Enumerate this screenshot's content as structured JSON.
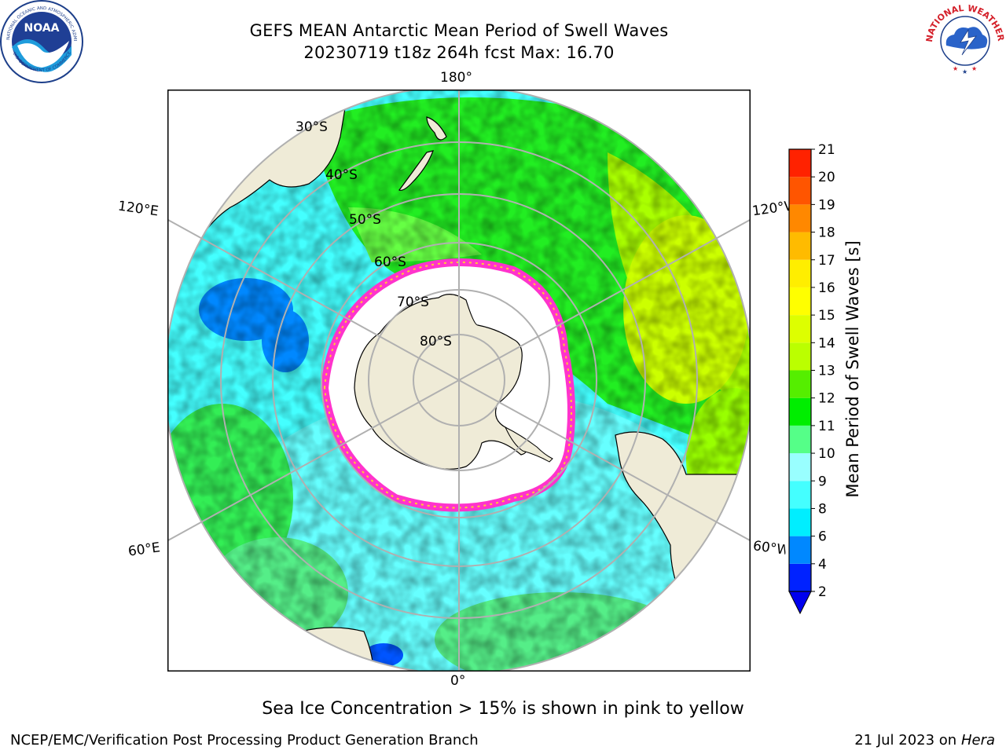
{
  "header": {
    "title_line1": "GEFS MEAN Antarctic Mean Period of Swell Waves",
    "title_line2": "20230719 t18z 264h fcst   Max: 16.70"
  },
  "logos": {
    "left": "NOAA",
    "right": "NATIONAL WEATHER SERVICE"
  },
  "map": {
    "projection": "south-polar-stereographic",
    "longitude_labels": {
      "top": "180°",
      "bottom": "0°",
      "left_upper": "120°E",
      "left_lower": "60°E",
      "right_upper": "120°W",
      "right_lower": "60°W"
    },
    "latitude_labels": [
      "30°S",
      "40°S",
      "50°S",
      "60°S",
      "70°S",
      "80°S"
    ],
    "colors": {
      "land": "#efebd7",
      "ice": "#ffffff",
      "ice_edge": "#ff33cc",
      "grid": "#b0b0b0"
    }
  },
  "colorbar": {
    "title": "Mean Period of Swell Waves [s]",
    "tick_labels": [
      "2",
      "4",
      "6",
      "8",
      "9",
      "10",
      "11",
      "12",
      "13",
      "14",
      "15",
      "16",
      "17",
      "18",
      "19",
      "20",
      "21"
    ],
    "colors": [
      "#0022ff",
      "#0088ff",
      "#00eeff",
      "#44ffff",
      "#99ffff",
      "#55ff88",
      "#00ee00",
      "#55ee00",
      "#bbff00",
      "#ddff00",
      "#ffff00",
      "#ffee00",
      "#ffbb00",
      "#ff8800",
      "#ff5500",
      "#ff2200"
    ],
    "under_color": "#0000ee"
  },
  "chart_data": {
    "type": "heatmap",
    "title": "GEFS MEAN Antarctic Mean Period of Swell Waves",
    "subtitle": "20230719 t18z 264h fcst   Max: 16.70",
    "colorbar_label": "Mean Period of Swell Waves [s]",
    "value_range": [
      2,
      21
    ],
    "max": 16.7
  },
  "caption": "Sea Ice Concentration > 15% is shown in pink to yellow",
  "footer": {
    "left": "NCEP/EMC/Verification Post Processing Product Generation Branch",
    "date": "21 Jul 2023 on ",
    "machine": "Hera"
  }
}
